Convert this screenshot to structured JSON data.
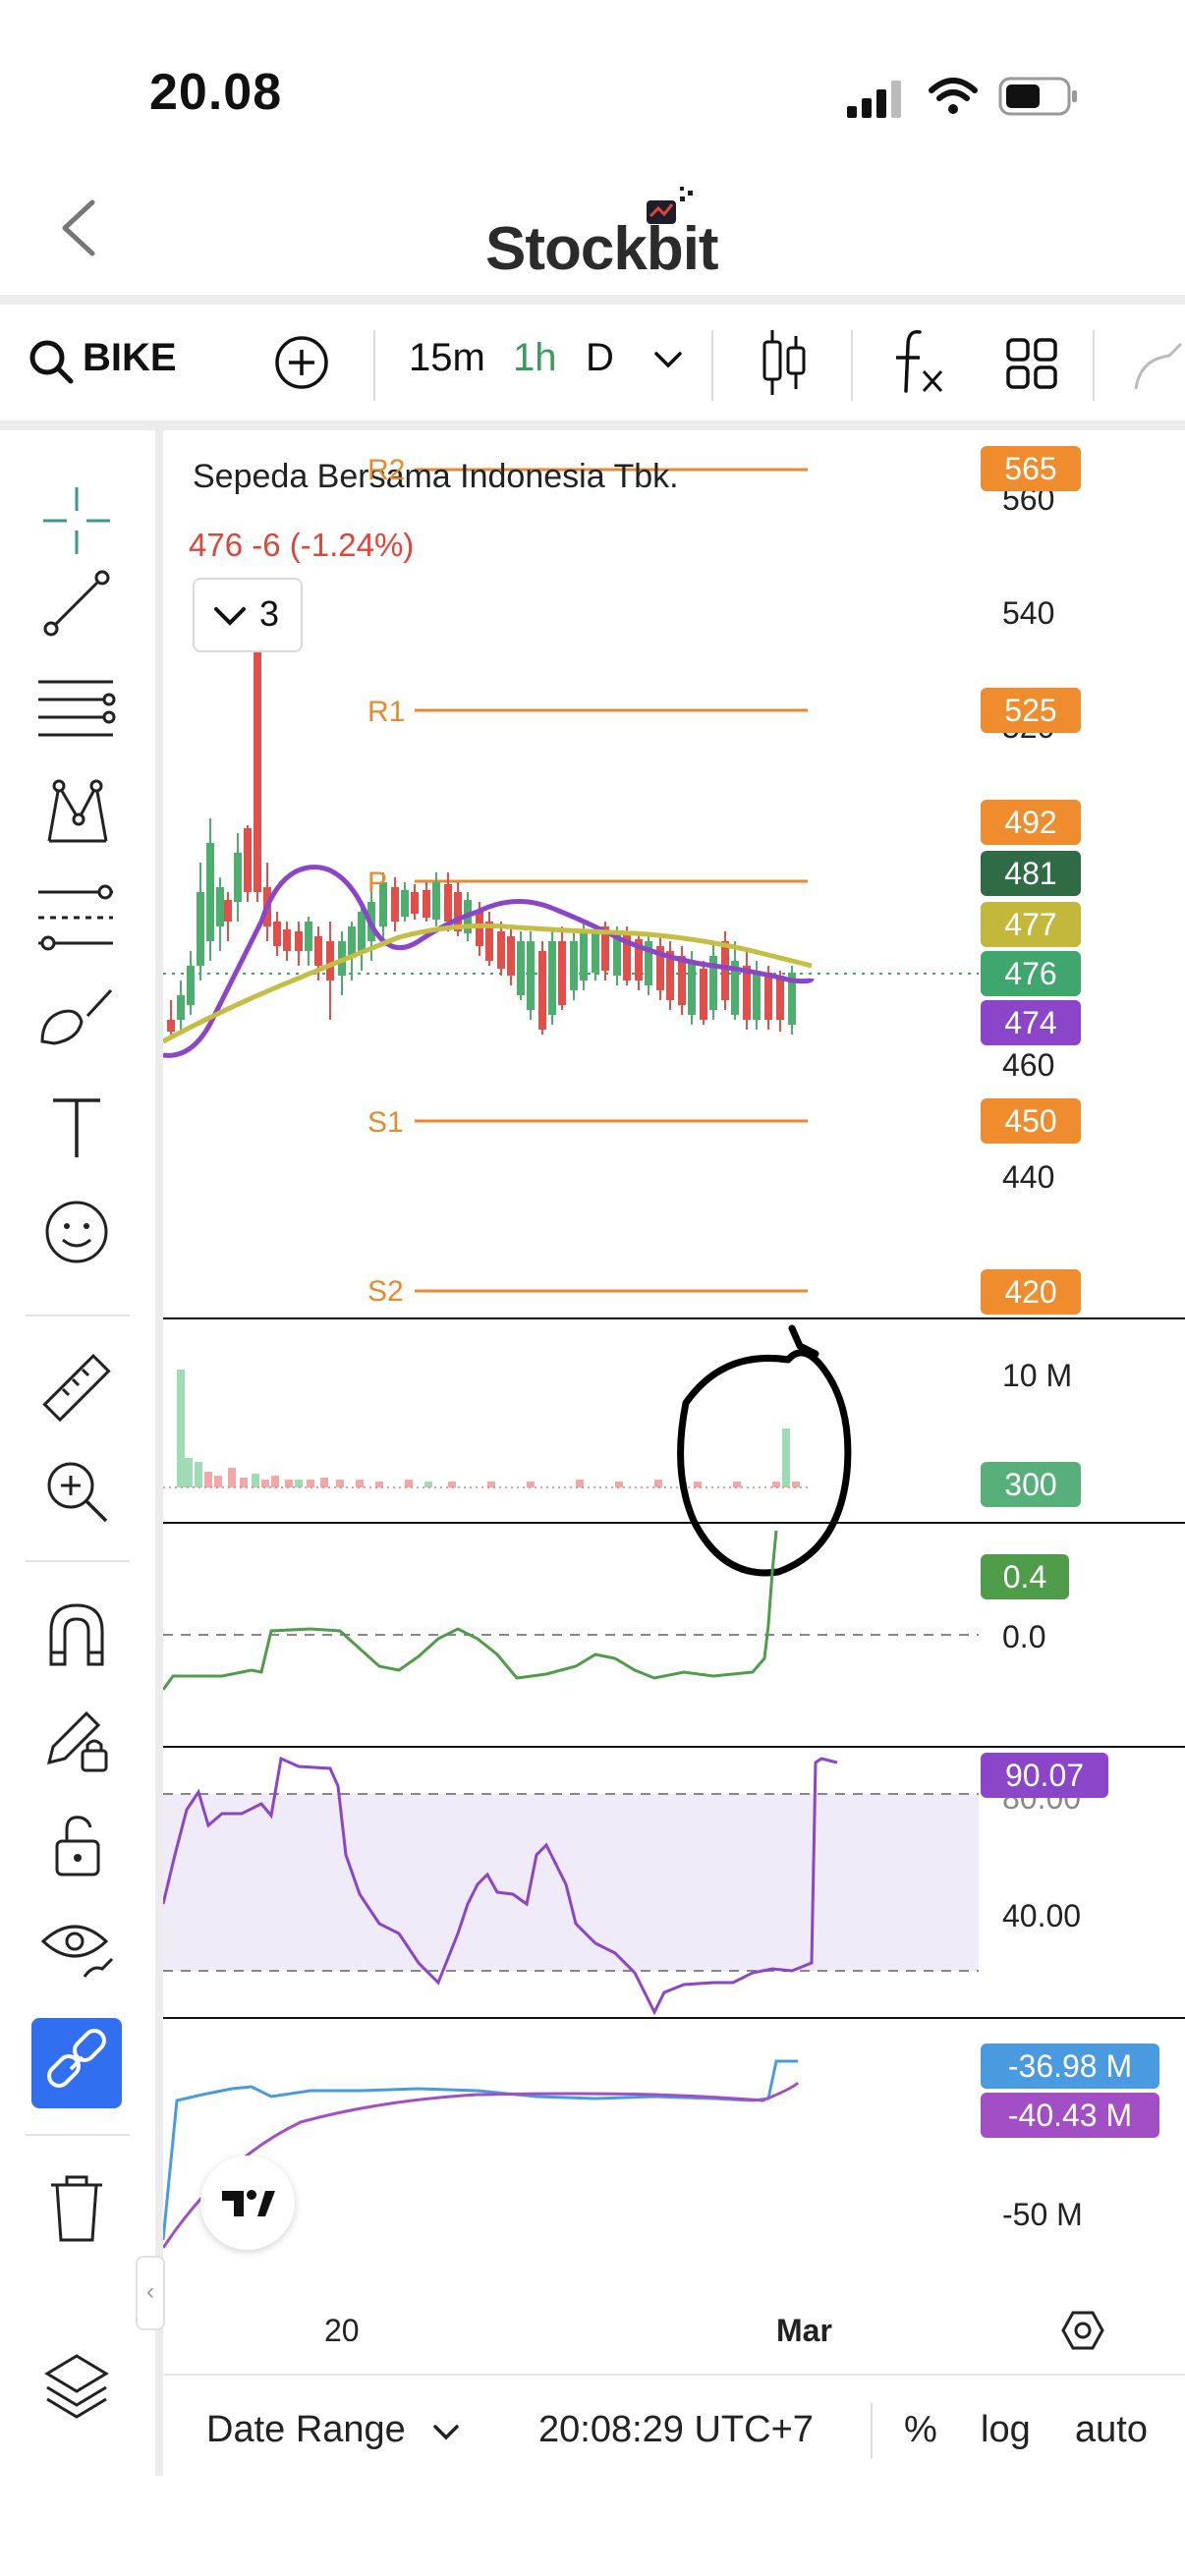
{
  "status_bar": {
    "time": "20.08"
  },
  "header": {
    "logo_text": "Stockbit",
    "back_icon": "chevron-left-icon"
  },
  "toolbar": {
    "symbol": "BIKE",
    "intervals": [
      "15m",
      "1h",
      "D"
    ],
    "active_interval": "1h",
    "icons": [
      "search-icon",
      "add-circle-icon",
      "chevron-down-icon",
      "candlestick-icon",
      "function-icon",
      "grid-layout-icon",
      "drawing-icon"
    ]
  },
  "chart": {
    "title": "Sepeda Bersama Indonesia Tbk.",
    "price_line": "476  -6 (-1.24%)",
    "collapse_count": "3",
    "pivot_labels": {
      "r2": "R2",
      "r1": "R1",
      "p": "P",
      "s1": "S1",
      "s2": "S2"
    },
    "price_tags": [
      {
        "value": "565",
        "color": "#ee8c2e"
      },
      {
        "value": "525",
        "color": "#ee8c2e"
      },
      {
        "value": "492",
        "color": "#ee8c2e"
      },
      {
        "value": "481",
        "color": "#2f6b45"
      },
      {
        "value": "477",
        "color": "#c3b73c"
      },
      {
        "value": "476",
        "color": "#3fa66d"
      },
      {
        "value": "474",
        "color": "#8b45c9"
      },
      {
        "value": "450",
        "color": "#ee8c2e"
      },
      {
        "value": "420",
        "color": "#ee8c2e"
      }
    ],
    "price_axis": [
      "560",
      "540",
      "520",
      "460",
      "440"
    ],
    "volume": {
      "axis_label": "10 M",
      "tag": "300",
      "tag_color": "#57b07a"
    },
    "oscillator": {
      "tag": "0.4",
      "tag_color": "#4f9d4a",
      "axis_label": "0.0"
    },
    "rsi": {
      "tag": "90.07",
      "tag_color": "#8b45c9",
      "axis_labels": [
        "80.00",
        "40.00"
      ]
    },
    "flow": {
      "tags": [
        {
          "value": "-36.98 M",
          "color": "#4a9ae0"
        },
        {
          "value": "-40.43 M",
          "color": "#a24ec5"
        }
      ],
      "axis_label": "-50 M"
    },
    "time_axis": [
      "20",
      "Mar"
    ],
    "colors": {
      "up": "#4caf6e",
      "down": "#e04f4a",
      "pivot": "#e88a2d",
      "ma_purple": "#8b45c9",
      "ma_yellow": "#c4be45",
      "annotation": "#000000"
    }
  },
  "bottom_bar": {
    "date_range": "Date Range",
    "timestamp": "20:08:29 UTC+7",
    "percent": "%",
    "log": "log",
    "auto": "auto"
  },
  "tools": [
    "crosshair-icon",
    "trend-line-icon",
    "horizontal-lines-icon",
    "pattern-icon",
    "fib-icon",
    "brush-icon",
    "text-icon",
    "emoji-icon",
    "ruler-icon",
    "zoom-in-icon",
    "magnet-icon",
    "lock-drawing-icon",
    "unlock-icon",
    "eye-icon",
    "link-icon",
    "trash-icon",
    "layers-icon"
  ]
}
